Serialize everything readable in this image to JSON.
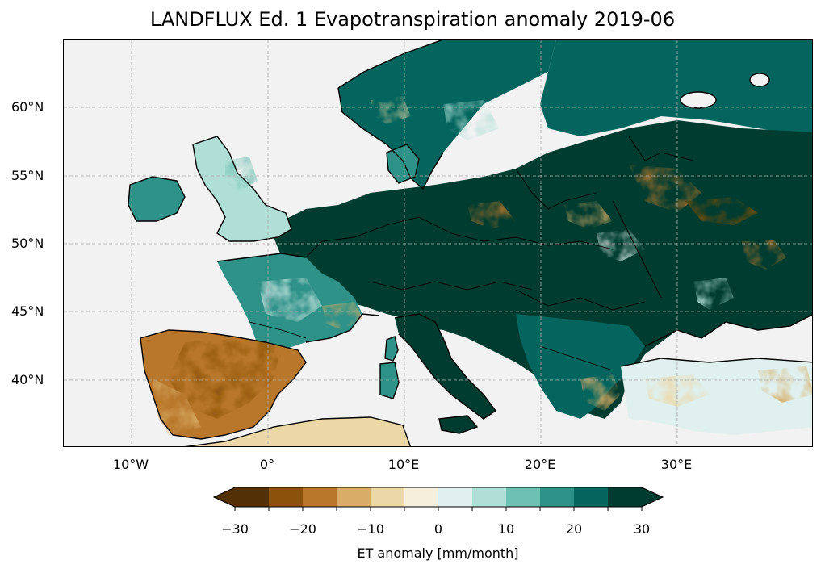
{
  "title": "LANDFLUX Ed. 1 Evapotranspiration anomaly 2019-06",
  "map": {
    "projection": "PlateCarree",
    "extent_lon": [
      -15,
      40
    ],
    "extent_lat": [
      35,
      65
    ],
    "gridlines": true,
    "lat_ticks": [
      {
        "value": 60,
        "label": "60°N"
      },
      {
        "value": 55,
        "label": "55°N"
      },
      {
        "value": 50,
        "label": "50°N"
      },
      {
        "value": 45,
        "label": "45°N"
      },
      {
        "value": 40,
        "label": "40°N"
      }
    ],
    "lon_ticks": [
      {
        "value": -10,
        "label": "10°W"
      },
      {
        "value": 0,
        "label": "0°"
      },
      {
        "value": 10,
        "label": "10°E"
      },
      {
        "value": 20,
        "label": "20°E"
      },
      {
        "value": 30,
        "label": "30°E"
      }
    ],
    "ocean_color": "#f2f2f2",
    "coastline_color": "#000000"
  },
  "colorbar": {
    "label": "ET anomaly [mm/month]",
    "range": [
      -30,
      30
    ],
    "extend": "both",
    "boundaries": [
      -30,
      -25,
      -20,
      -15,
      -10,
      -5,
      0,
      5,
      10,
      15,
      20,
      25,
      30
    ],
    "colors": [
      "#543005",
      "#8c510a",
      "#b8772b",
      "#d8ad65",
      "#ecd7a6",
      "#f5efdc",
      "#dff0ee",
      "#afdfd6",
      "#6dc0b2",
      "#2f9289",
      "#03655d",
      "#003c30"
    ],
    "tick_labels": [
      {
        "value": -30,
        "label": "−30"
      },
      {
        "value": -20,
        "label": "−20"
      },
      {
        "value": -10,
        "label": "−10"
      },
      {
        "value": 0,
        "label": "0"
      },
      {
        "value": 10,
        "label": "10"
      },
      {
        "value": 20,
        "label": "20"
      },
      {
        "value": 30,
        "label": "30"
      }
    ]
  }
}
